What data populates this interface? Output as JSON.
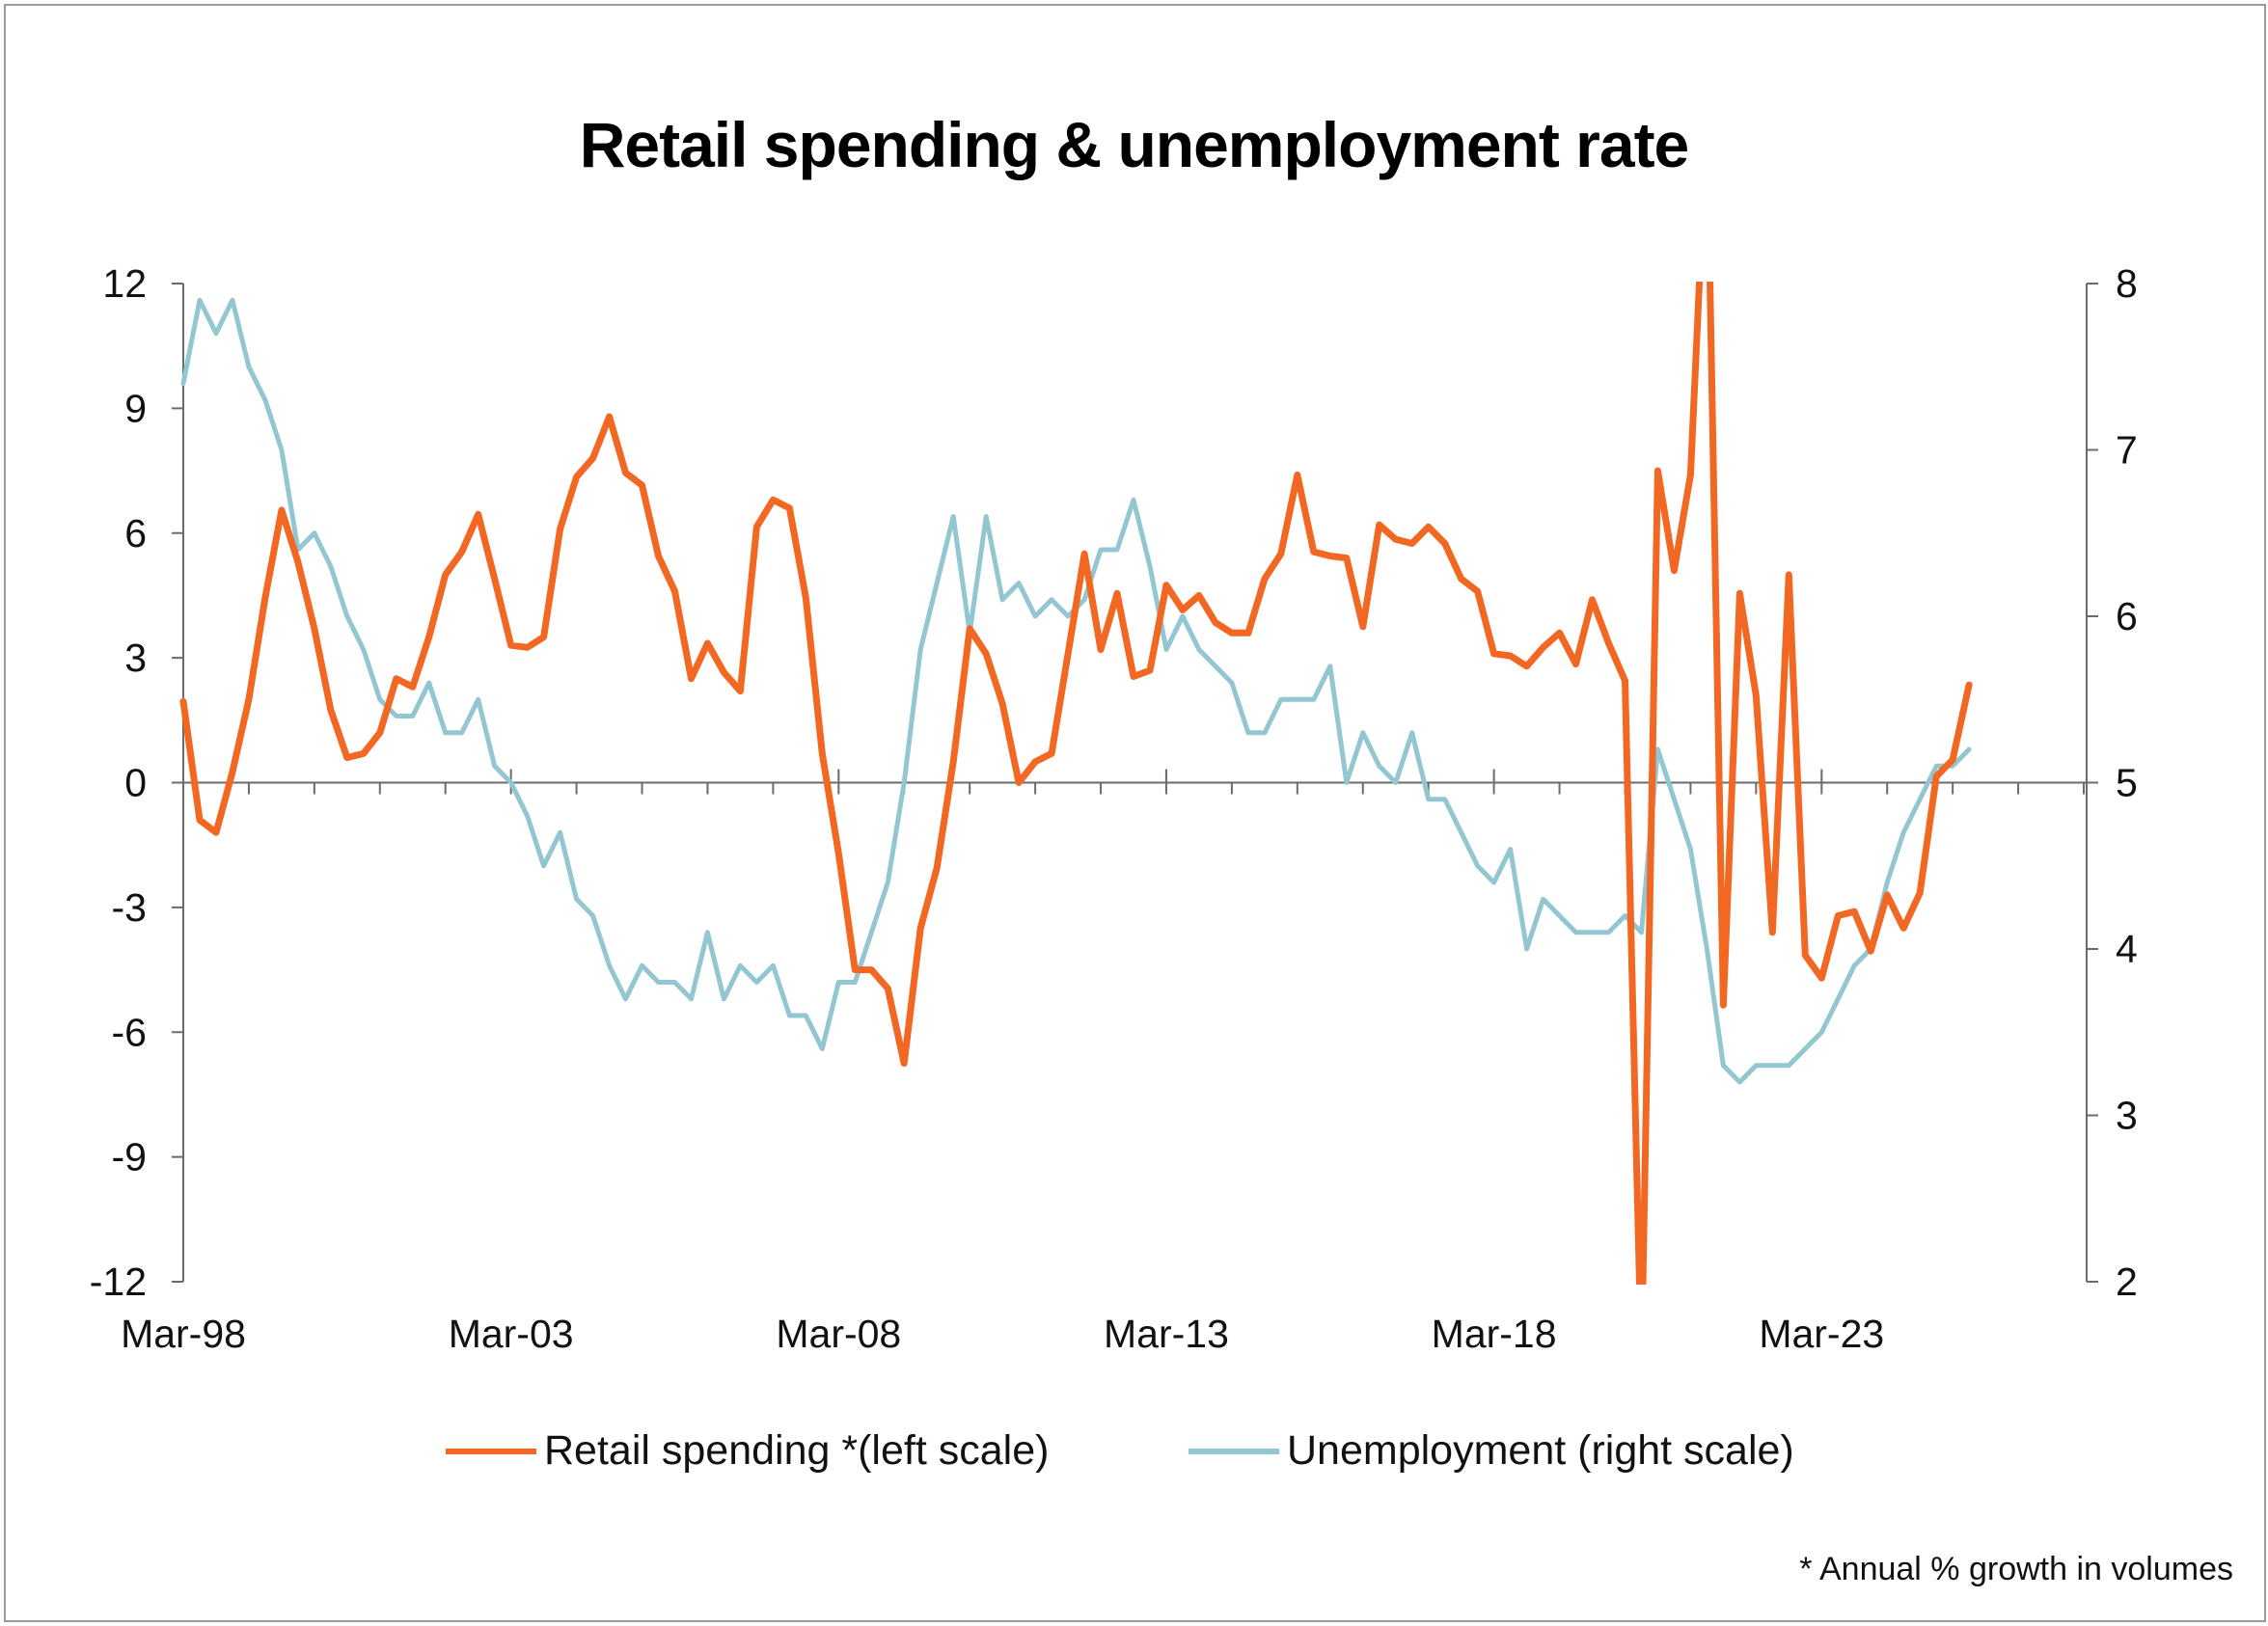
{
  "chart_data": {
    "type": "line",
    "title": "Retail spending & unemployment rate",
    "x_start": "Mar-98",
    "x_frequency": "quarterly",
    "x_tick_labels": [
      "Mar-98",
      "Mar-03",
      "Mar-08",
      "Mar-13",
      "Mar-18",
      "Mar-23"
    ],
    "x_range": [
      "Mar-98",
      "Mar-27"
    ],
    "left_axis": {
      "range": [
        -12,
        12
      ],
      "ticks": [
        "-12",
        "-9",
        "-6",
        "-3",
        "0",
        "3",
        "6",
        "9",
        "12"
      ]
    },
    "right_axis": {
      "range": [
        2,
        8
      ],
      "ticks": [
        "2",
        "3",
        "4",
        "5",
        "6",
        "7",
        "8"
      ]
    },
    "grid": false,
    "legend_position": "bottom",
    "series": [
      {
        "name": "Retail spending *(left scale)",
        "axis": "left",
        "color": "#F26722",
        "values": [
          1.95,
          -0.9,
          -1.2,
          0.25,
          2.0,
          4.45,
          6.55,
          5.3,
          3.7,
          1.75,
          0.6,
          0.7,
          1.2,
          2.5,
          2.3,
          3.5,
          5.0,
          5.55,
          6.45,
          4.9,
          3.3,
          3.25,
          3.5,
          6.1,
          7.35,
          7.8,
          8.8,
          7.45,
          7.15,
          5.45,
          4.6,
          2.5,
          3.35,
          2.65,
          2.2,
          6.15,
          6.8,
          6.6,
          4.45,
          0.7,
          -1.7,
          -4.5,
          -4.5,
          -4.95,
          -6.75,
          -3.5,
          -2.05,
          0.5,
          3.7,
          3.1,
          1.9,
          0.0,
          0.5,
          0.7,
          3.1,
          5.5,
          3.2,
          4.55,
          2.55,
          2.7,
          4.75,
          4.15,
          4.5,
          3.85,
          3.6,
          3.6,
          4.9,
          5.5,
          7.4,
          5.55,
          5.45,
          5.4,
          3.75,
          6.2,
          5.85,
          5.75,
          6.15,
          5.75,
          4.9,
          4.6,
          3.1,
          3.05,
          2.8,
          3.25,
          3.6,
          2.85,
          4.4,
          3.35,
          2.45,
          -14,
          7.5,
          5.1,
          7.4,
          16,
          -5.35,
          4.55,
          2.1,
          -3.6,
          5.0,
          -4.15,
          -4.7,
          -3.2,
          -3.1,
          -4.05,
          -2.7,
          -3.5,
          -2.65,
          0.15,
          0.55,
          2.35
        ]
      },
      {
        "name": "Unemployment (right scale)",
        "axis": "right",
        "color": "#92C6D1",
        "values": [
          7.4,
          7.9,
          7.7,
          7.9,
          7.5,
          7.3,
          7.0,
          6.4,
          6.5,
          6.3,
          6.0,
          5.8,
          5.5,
          5.4,
          5.4,
          5.6,
          5.3,
          5.3,
          5.5,
          5.1,
          5.0,
          4.8,
          4.5,
          4.7,
          4.3,
          4.2,
          3.9,
          3.7,
          3.9,
          3.8,
          3.8,
          3.7,
          4.1,
          3.7,
          3.9,
          3.8,
          3.9,
          3.6,
          3.6,
          3.4,
          3.8,
          3.8,
          4.1,
          4.4,
          5.0,
          5.8,
          6.2,
          6.6,
          5.9,
          6.6,
          6.1,
          6.2,
          6.0,
          6.1,
          6.0,
          6.1,
          6.4,
          6.4,
          6.7,
          6.3,
          5.8,
          6.0,
          5.8,
          5.7,
          5.6,
          5.3,
          5.3,
          5.5,
          5.5,
          5.5,
          5.7,
          5.0,
          5.3,
          5.1,
          5.0,
          5.3,
          4.9,
          4.9,
          4.7,
          4.5,
          4.4,
          4.6,
          4.0,
          4.3,
          4.2,
          4.1,
          4.1,
          4.1,
          4.2,
          4.1,
          5.2,
          4.9,
          4.6,
          4.0,
          3.3,
          3.2,
          3.3,
          3.3,
          3.3,
          3.4,
          3.5,
          3.7,
          3.9,
          4.0,
          4.4,
          4.7,
          4.9,
          5.1,
          5.1,
          5.2
        ]
      }
    ],
    "footnote": "* Annual % growth in volumes"
  }
}
